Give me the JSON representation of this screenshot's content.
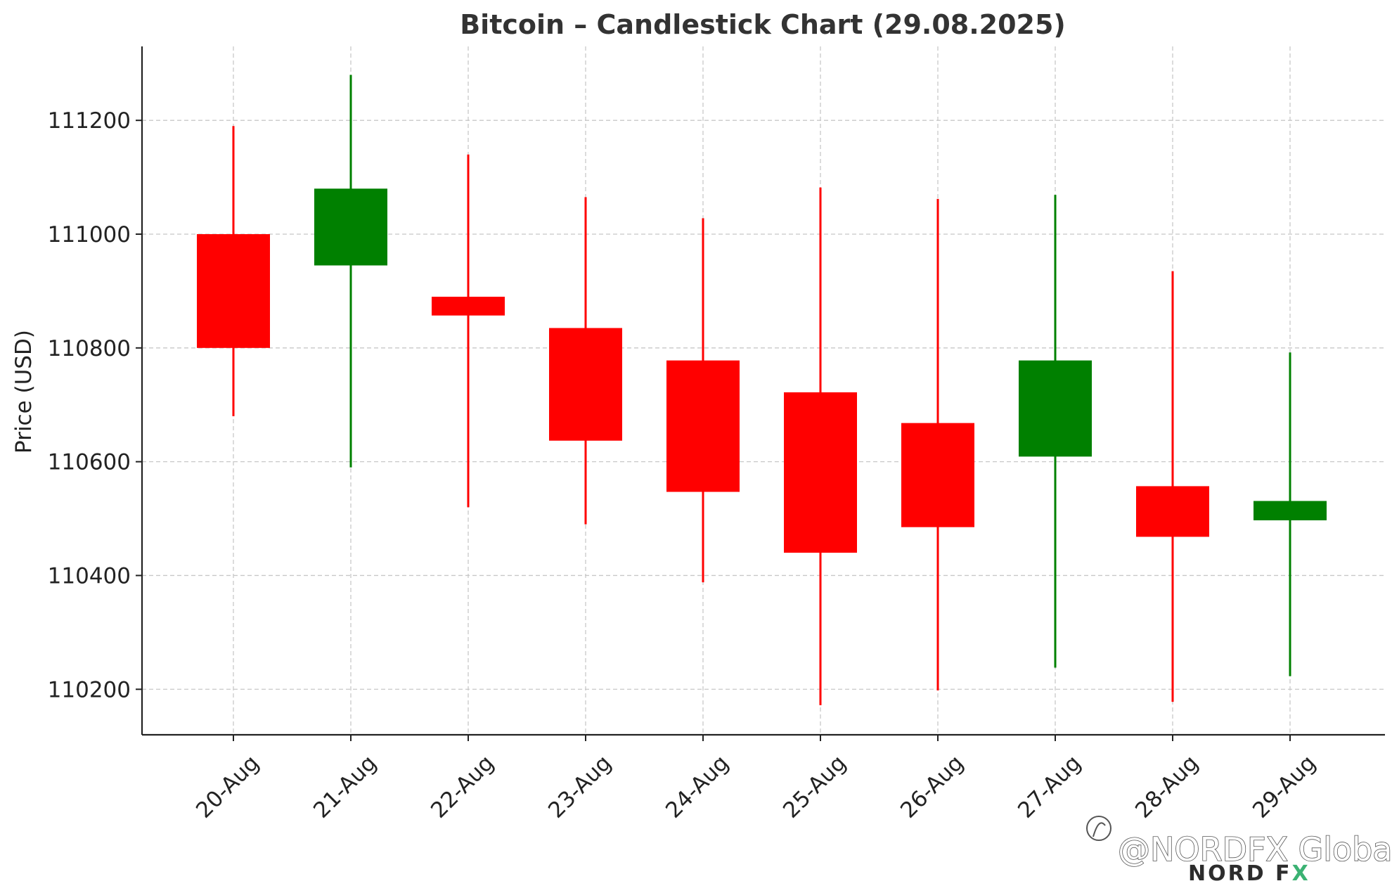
{
  "chart_data": {
    "type": "candlestick",
    "title": "Bitcoin – Candlestick Chart (29.08.2025)",
    "xlabel": "",
    "ylabel": "Price (USD)",
    "ylim": [
      110120,
      111330
    ],
    "yticks": [
      110200,
      110400,
      110600,
      110800,
      111000,
      111200
    ],
    "grid": true,
    "categories": [
      "20-Aug",
      "21-Aug",
      "22-Aug",
      "23-Aug",
      "24-Aug",
      "25-Aug",
      "26-Aug",
      "27-Aug",
      "28-Aug",
      "29-Aug"
    ],
    "candles": [
      {
        "date": "20-Aug",
        "open": 111000,
        "high": 111190,
        "low": 110680,
        "close": 110800
      },
      {
        "date": "21-Aug",
        "open": 110945,
        "high": 111280,
        "low": 110590,
        "close": 111080
      },
      {
        "date": "22-Aug",
        "open": 110890,
        "high": 111140,
        "low": 110520,
        "close": 110857
      },
      {
        "date": "23-Aug",
        "open": 110835,
        "high": 111065,
        "low": 110490,
        "close": 110637
      },
      {
        "date": "24-Aug",
        "open": 110778,
        "high": 111028,
        "low": 110388,
        "close": 110547
      },
      {
        "date": "25-Aug",
        "open": 110722,
        "high": 111082,
        "low": 110172,
        "close": 110440
      },
      {
        "date": "26-Aug",
        "open": 110668,
        "high": 111062,
        "low": 110198,
        "close": 110485
      },
      {
        "date": "27-Aug",
        "open": 110609,
        "high": 111069,
        "low": 110238,
        "close": 110778
      },
      {
        "date": "28-Aug",
        "open": 110557,
        "high": 110935,
        "low": 110178,
        "close": 110468
      },
      {
        "date": "29-Aug",
        "open": 110497,
        "high": 110792,
        "low": 110223,
        "close": 110531
      }
    ],
    "colors": {
      "up": "#008000",
      "down": "#ff0000",
      "grid": "#c8c8c8",
      "axis": "#222222"
    }
  },
  "watermark": {
    "handle": "@NORDFX Global",
    "brand_main": "NORD F",
    "brand_x": "X",
    "brand_x_color": "#3bb273",
    "icon": "social-logo-icon"
  }
}
